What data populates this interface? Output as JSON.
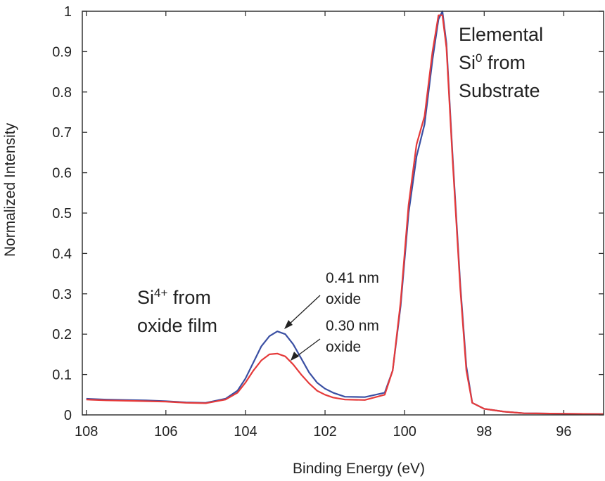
{
  "chart_data": {
    "type": "line",
    "xlabel": "Binding Energy (eV)",
    "ylabel": "Normalized Intensity",
    "xlim": [
      108.1,
      95.0
    ],
    "ylim": [
      0,
      1.0
    ],
    "x_reversed": true,
    "x_ticks": [
      108,
      106,
      104,
      102,
      100,
      98,
      96
    ],
    "y_ticks": [
      0,
      0.1,
      0.2,
      0.3,
      0.4,
      0.5,
      0.6,
      0.7,
      0.8,
      0.9,
      1
    ],
    "x_tick_labels": [
      "108",
      "106",
      "104",
      "102",
      "100",
      "98",
      "96"
    ],
    "y_tick_labels": [
      "0",
      "0.1",
      "0.2",
      "0.3",
      "0.4",
      "0.5",
      "0.6",
      "0.7",
      "0.8",
      "0.9",
      "1"
    ],
    "grid": false,
    "series": [
      {
        "name": "0.41 nm oxide",
        "color": "#3a4fa3",
        "x": [
          108.0,
          107.5,
          107.0,
          106.5,
          106.0,
          105.5,
          105.0,
          104.5,
          104.2,
          104.0,
          103.8,
          103.6,
          103.4,
          103.2,
          103.0,
          102.8,
          102.6,
          102.4,
          102.2,
          102.0,
          101.8,
          101.5,
          101.0,
          100.5,
          100.3,
          100.1,
          99.9,
          99.7,
          99.5,
          99.3,
          99.15,
          99.05,
          98.95,
          98.8,
          98.6,
          98.45,
          98.3,
          98.0,
          97.5,
          97.0,
          96.0,
          95.0
        ],
        "values": [
          0.04,
          0.038,
          0.037,
          0.036,
          0.034,
          0.031,
          0.03,
          0.04,
          0.06,
          0.09,
          0.13,
          0.17,
          0.195,
          0.207,
          0.2,
          0.175,
          0.14,
          0.105,
          0.08,
          0.065,
          0.055,
          0.045,
          0.044,
          0.055,
          0.11,
          0.27,
          0.5,
          0.64,
          0.72,
          0.88,
          0.98,
          1.0,
          0.92,
          0.65,
          0.32,
          0.12,
          0.03,
          0.015,
          0.008,
          0.004,
          0.003,
          0.002
        ]
      },
      {
        "name": "0.30 nm oxide",
        "color": "#e53a3a",
        "x": [
          108.0,
          107.5,
          107.0,
          106.5,
          106.0,
          105.5,
          105.0,
          104.5,
          104.2,
          104.0,
          103.8,
          103.6,
          103.4,
          103.2,
          103.0,
          102.8,
          102.6,
          102.4,
          102.2,
          102.0,
          101.8,
          101.5,
          101.0,
          100.5,
          100.3,
          100.1,
          99.9,
          99.7,
          99.5,
          99.3,
          99.15,
          99.05,
          98.95,
          98.8,
          98.6,
          98.45,
          98.3,
          98.0,
          97.5,
          97.0,
          96.0,
          95.0
        ],
        "values": [
          0.038,
          0.036,
          0.035,
          0.034,
          0.033,
          0.03,
          0.029,
          0.038,
          0.055,
          0.08,
          0.11,
          0.135,
          0.15,
          0.152,
          0.145,
          0.125,
          0.1,
          0.078,
          0.06,
          0.05,
          0.043,
          0.038,
          0.037,
          0.05,
          0.11,
          0.28,
          0.52,
          0.67,
          0.74,
          0.9,
          0.99,
          0.99,
          0.91,
          0.64,
          0.31,
          0.11,
          0.03,
          0.015,
          0.008,
          0.004,
          0.003,
          0.002
        ]
      }
    ],
    "annotations": {
      "elemental": [
        "Elemental",
        "Si",
        "0",
        " from",
        "Substrate"
      ],
      "oxide_peak": [
        "Si",
        "4+",
        " from",
        "oxide film"
      ],
      "label_041": [
        "0.41 nm",
        "oxide"
      ],
      "label_030": [
        "0.30 nm",
        "oxide"
      ]
    }
  }
}
